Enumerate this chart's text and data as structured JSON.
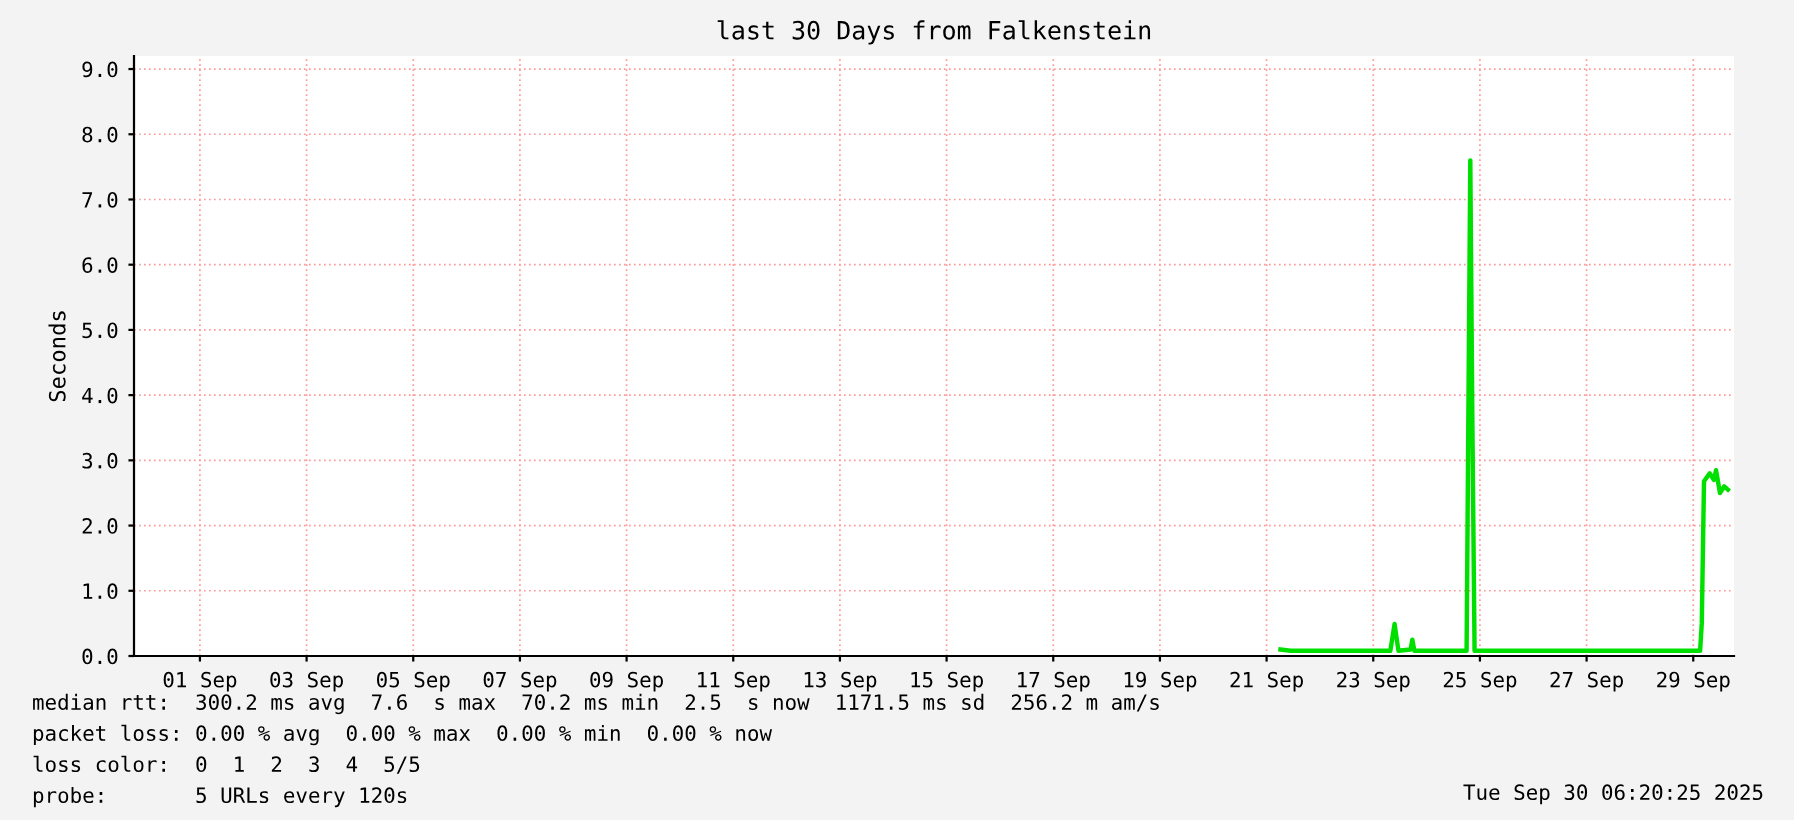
{
  "chart_data": {
    "type": "line",
    "title": "last 30 Days from Falkenstein",
    "ylabel": "Seconds",
    "x": [
      "2025-09-21T18:15",
      "2025-09-21T22:50",
      "2025-09-23T19:40",
      "2025-09-23T21:35",
      "2025-09-23T23:20",
      "2025-09-24T04:50",
      "2025-09-24T05:35",
      "2025-09-24T06:30",
      "2025-09-25T06:00",
      "2025-09-25T07:40",
      "2025-09-25T08:35",
      "2025-09-25T09:35",
      "2025-09-29T15:05",
      "2025-09-29T15:50",
      "2025-09-29T16:50",
      "2025-09-29T19:25",
      "2025-09-29T21:20",
      "2025-09-29T22:15",
      "2025-09-30T00:00",
      "2025-09-30T01:55",
      "2025-09-30T03:35"
    ],
    "series": [
      {
        "color": "#00e000",
        "values": [
          0.1,
          0.08,
          0.08,
          0.49,
          0.08,
          0.1,
          0.25,
          0.08,
          0.08,
          7.6,
          3.66,
          0.08,
          0.08,
          0.5,
          2.68,
          2.8,
          2.7,
          2.85,
          2.5,
          2.6,
          2.55
        ]
      }
    ],
    "xlim": [
      "2025-08-31T06:20",
      "2025-09-30T06:20"
    ],
    "xticks": [
      {
        "value": "2025-09-01T12:00",
        "label": "01 Sep"
      },
      {
        "value": "2025-09-03T12:00",
        "label": "03 Sep"
      },
      {
        "value": "2025-09-05T12:00",
        "label": "05 Sep"
      },
      {
        "value": "2025-09-07T12:00",
        "label": "07 Sep"
      },
      {
        "value": "2025-09-09T12:00",
        "label": "09 Sep"
      },
      {
        "value": "2025-09-11T12:00",
        "label": "11 Sep"
      },
      {
        "value": "2025-09-13T12:00",
        "label": "13 Sep"
      },
      {
        "value": "2025-09-15T12:00",
        "label": "15 Sep"
      },
      {
        "value": "2025-09-17T12:00",
        "label": "17 Sep"
      },
      {
        "value": "2025-09-19T12:00",
        "label": "19 Sep"
      },
      {
        "value": "2025-09-21T12:00",
        "label": "21 Sep"
      },
      {
        "value": "2025-09-23T12:00",
        "label": "23 Sep"
      },
      {
        "value": "2025-09-25T12:00",
        "label": "25 Sep"
      },
      {
        "value": "2025-09-27T12:00",
        "label": "27 Sep"
      },
      {
        "value": "2025-09-29T12:00",
        "label": "29 Sep"
      }
    ],
    "ylim": [
      0,
      9.2
    ],
    "yticks": [
      {
        "value": 0,
        "label": "0.0"
      },
      {
        "value": 1,
        "label": "1.0"
      },
      {
        "value": 2,
        "label": "2.0"
      },
      {
        "value": 3,
        "label": "3.0"
      },
      {
        "value": 4,
        "label": "4.0"
      },
      {
        "value": 5,
        "label": "5.0"
      },
      {
        "value": 6,
        "label": "6.0"
      },
      {
        "value": 7,
        "label": "7.0"
      },
      {
        "value": 8,
        "label": "8.0"
      },
      {
        "value": 9,
        "label": "9.0"
      }
    ],
    "grid": true,
    "legend": false,
    "annotations": [
      "median rtt:  300.2 ms avg  7.6  s max  70.2 ms min  2.5  s now  1171.5 ms sd  256.2 m am/s",
      "packet loss: 0.00 % avg  0.00 % max  0.00 % min  0.00 % now",
      "loss color:  0  1  2  3  4  5/5",
      "probe:       5 URLs every 120s",
      "Tue Sep 30 06:20:25 2025"
    ]
  }
}
